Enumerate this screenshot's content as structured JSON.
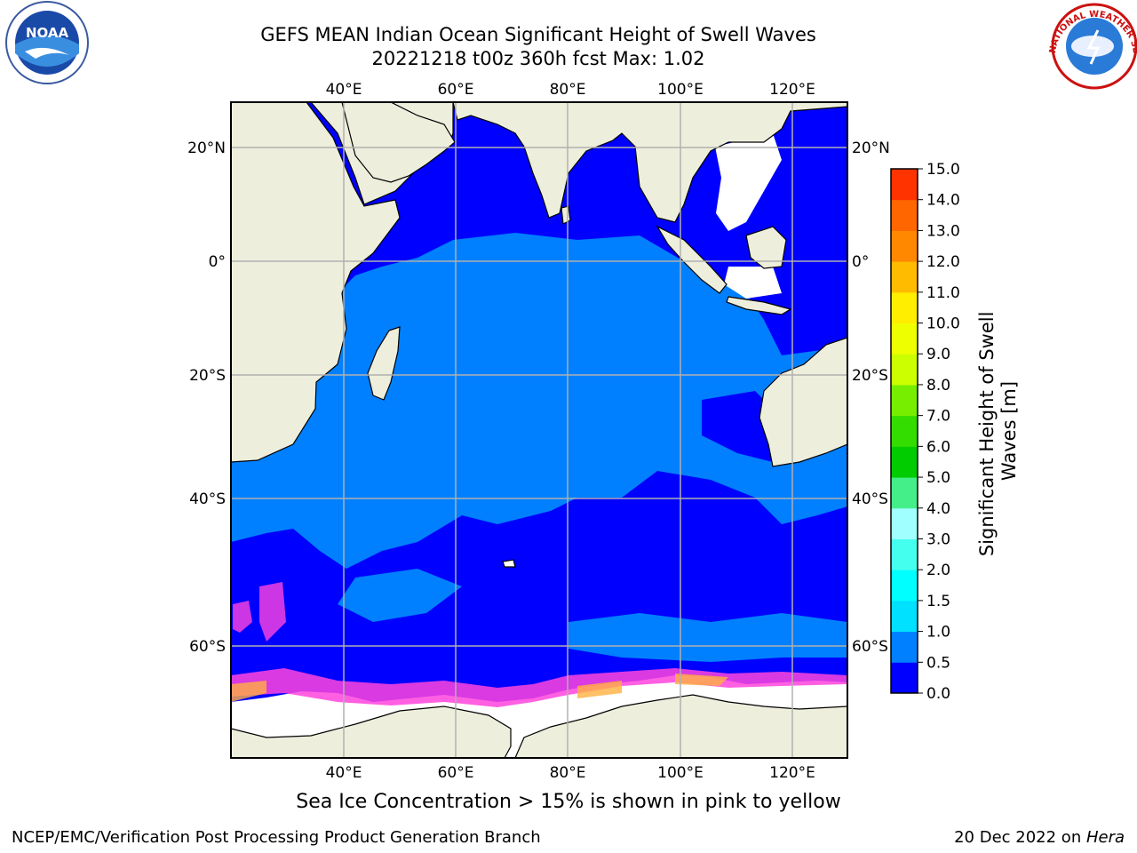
{
  "header": {
    "title_line1": "GEFS MEAN Indian Ocean Significant Height of Swell Waves",
    "title_line2": "20221218 t00z 360h fcst   Max: 1.02"
  },
  "map": {
    "lon_labels": [
      "40°E",
      "60°E",
      "80°E",
      "100°E",
      "120°E"
    ],
    "lat_labels": [
      "20°N",
      "0°",
      "20°S",
      "40°S",
      "60°S"
    ],
    "colors": {
      "land": "#eeeedd",
      "ocean_low": "#0000ff",
      "ocean_mid": "#0080ff",
      "ice_white": "#ffffff",
      "ice_pink": "#ff44dd",
      "ice_orange": "#ffb040",
      "grid": "#b0b0b0"
    }
  },
  "colorbar": {
    "label": "Significant Height of Swell Waves [m]",
    "ticks": [
      "0.0",
      "0.5",
      "1.0",
      "1.5",
      "2.0",
      "3.0",
      "4.0",
      "5.0",
      "6.0",
      "7.0",
      "8.0",
      "9.0",
      "10.0",
      "11.0",
      "12.0",
      "13.0",
      "14.0",
      "15.0"
    ],
    "colors": [
      "#0000ff",
      "#0080ff",
      "#00e0ff",
      "#00ffff",
      "#44ffee",
      "#a0ffff",
      "#44ee88",
      "#00cc00",
      "#33dd00",
      "#77ee00",
      "#ccff00",
      "#eeff00",
      "#ffee00",
      "#ffbb00",
      "#ff8800",
      "#ff6600",
      "#ff3300",
      "#ff0000"
    ]
  },
  "caption": "Sea Ice Concentration > 15% is shown in pink to yellow",
  "footer": {
    "left": "NCEP/EMC/Verification Post Processing Product Generation Branch",
    "right_prefix": "20 Dec 2022 on ",
    "right_host": "Hera"
  },
  "logos": {
    "noaa": "NOAA",
    "nws_ring": "NATIONAL WEATHER SERVICE"
  }
}
